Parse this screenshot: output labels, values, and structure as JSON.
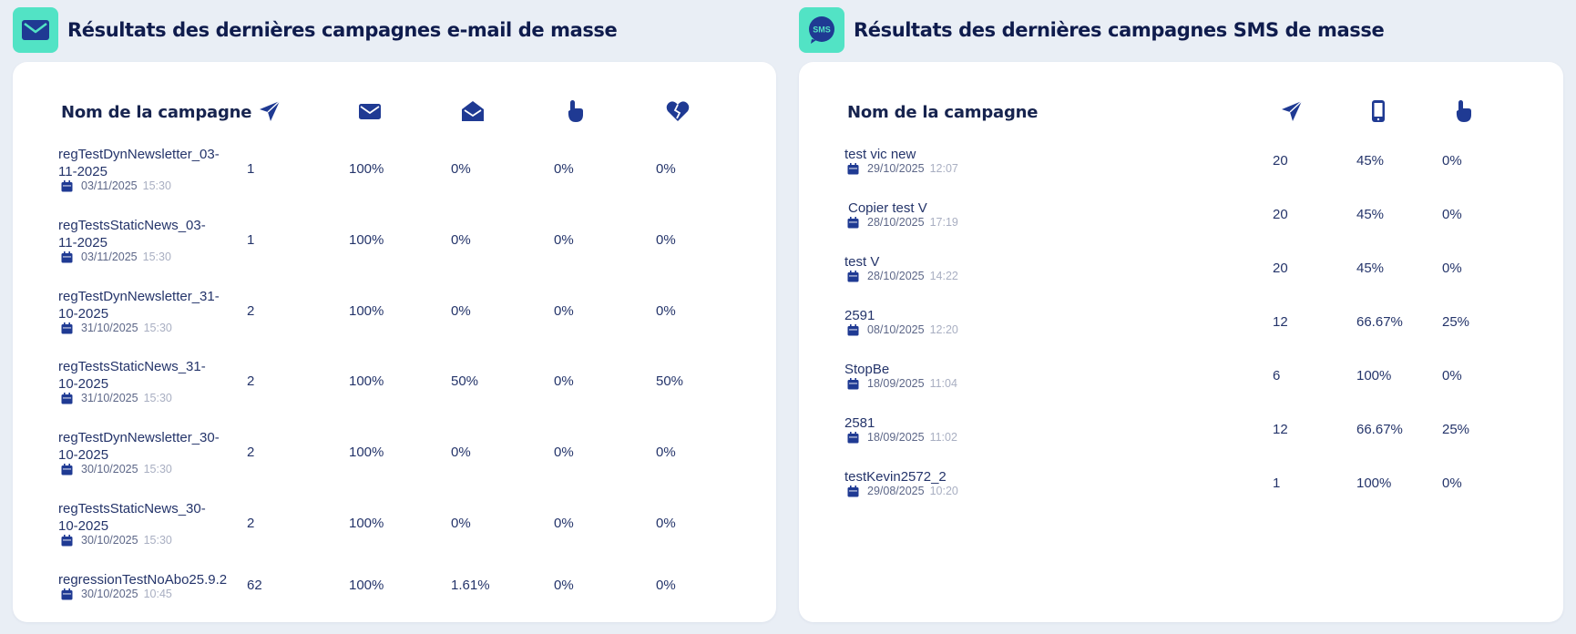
{
  "colors": {
    "accent": "#52e3c5",
    "navy": "#1f3a93",
    "text": "#24346a",
    "bg": "#e9eef5"
  },
  "email": {
    "title": "Résultats des dernières campagnes e-mail de masse",
    "header_icon": "envelope-icon",
    "columns": {
      "name": "Nom de la campagne",
      "icons": [
        "paper-plane-icon",
        "envelope-icon",
        "envelope-open-icon",
        "pointer-hand-icon",
        "broken-heart-icon"
      ]
    },
    "rows": [
      {
        "name_line1": "regTestDynNewsletter_03-",
        "name_line2": "11-2025",
        "date": "03/11/2025",
        "time": "15:30",
        "sent": "1",
        "delivered": "100%",
        "opened": "0%",
        "clicked": "0%",
        "unsub": "0%"
      },
      {
        "name_line1": "regTestsStaticNews_03-",
        "name_line2": "11-2025",
        "date": "03/11/2025",
        "time": "15:30",
        "sent": "1",
        "delivered": "100%",
        "opened": "0%",
        "clicked": "0%",
        "unsub": "0%"
      },
      {
        "name_line1": "regTestDynNewsletter_31-",
        "name_line2": "10-2025",
        "date": "31/10/2025",
        "time": "15:30",
        "sent": "2",
        "delivered": "100%",
        "opened": "0%",
        "clicked": "0%",
        "unsub": "0%"
      },
      {
        "name_line1": "regTestsStaticNews_31-",
        "name_line2": "10-2025",
        "date": "31/10/2025",
        "time": "15:30",
        "sent": "2",
        "delivered": "100%",
        "opened": "50%",
        "clicked": "0%",
        "unsub": "50%"
      },
      {
        "name_line1": "regTestDynNewsletter_30-",
        "name_line2": "10-2025",
        "date": "30/10/2025",
        "time": "15:30",
        "sent": "2",
        "delivered": "100%",
        "opened": "0%",
        "clicked": "0%",
        "unsub": "0%"
      },
      {
        "name_line1": "regTestsStaticNews_30-",
        "name_line2": "10-2025",
        "date": "30/10/2025",
        "time": "15:30",
        "sent": "2",
        "delivered": "100%",
        "opened": "0%",
        "clicked": "0%",
        "unsub": "0%"
      },
      {
        "name_line1": "regressionTestNoAbo25.9.2",
        "name_line2": "",
        "date": "30/10/2025",
        "time": "10:45",
        "sent": "62",
        "delivered": "100%",
        "opened": "1.61%",
        "clicked": "0%",
        "unsub": "0%"
      }
    ]
  },
  "sms": {
    "title": "Résultats des dernières campagnes SMS de masse",
    "header_icon_text": "SMS",
    "columns": {
      "name": "Nom de la campagne",
      "icons": [
        "paper-plane-icon",
        "mobile-phone-icon",
        "pointer-hand-icon"
      ]
    },
    "rows": [
      {
        "name": "test vic new",
        "date": "29/10/2025",
        "time": "12:07",
        "sent": "20",
        "delivered": "45%",
        "clicked": "0%"
      },
      {
        "name": "Copier test V",
        "date": "28/10/2025",
        "time": "17:19",
        "sent": "20",
        "delivered": "45%",
        "clicked": "0%"
      },
      {
        "name": "test V",
        "date": "28/10/2025",
        "time": "14:22",
        "sent": "20",
        "delivered": "45%",
        "clicked": "0%"
      },
      {
        "name": "2591",
        "date": "08/10/2025",
        "time": "12:20",
        "sent": "12",
        "delivered": "66.67%",
        "clicked": "25%"
      },
      {
        "name": "StopBe",
        "date": "18/09/2025",
        "time": "11:04",
        "sent": "6",
        "delivered": "100%",
        "clicked": "0%"
      },
      {
        "name": "2581",
        "date": "18/09/2025",
        "time": "11:02",
        "sent": "12",
        "delivered": "66.67%",
        "clicked": "25%"
      },
      {
        "name": "testKevin2572_2",
        "date": "29/08/2025",
        "time": "10:20",
        "sent": "1",
        "delivered": "100%",
        "clicked": "0%"
      }
    ]
  }
}
